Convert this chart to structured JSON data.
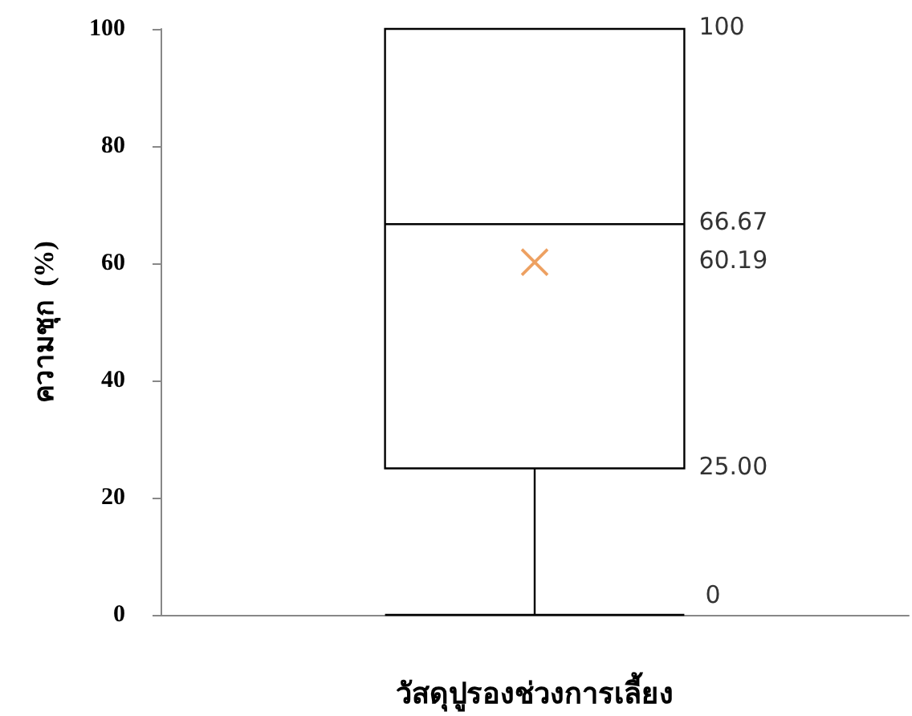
{
  "chart_data": {
    "type": "box",
    "xlabel": "วัสดุปูรองช่วงการเลี้ยง",
    "ylabel": "ความชุก  (%)",
    "categories": [
      null
    ],
    "series": [
      {
        "color": "#000000",
        "boxes": [
          {
            "low": 0,
            "q1": 25,
            "median": 66.67,
            "q3": 100,
            "high": 100,
            "mean": 60.19
          }
        ]
      }
    ],
    "ylim": [
      0,
      100
    ],
    "yticks": [
      0,
      20,
      40,
      60,
      80,
      100
    ],
    "grid": false,
    "annotations": [
      "100",
      "66.67",
      "60.19",
      "25.00",
      "0"
    ]
  }
}
